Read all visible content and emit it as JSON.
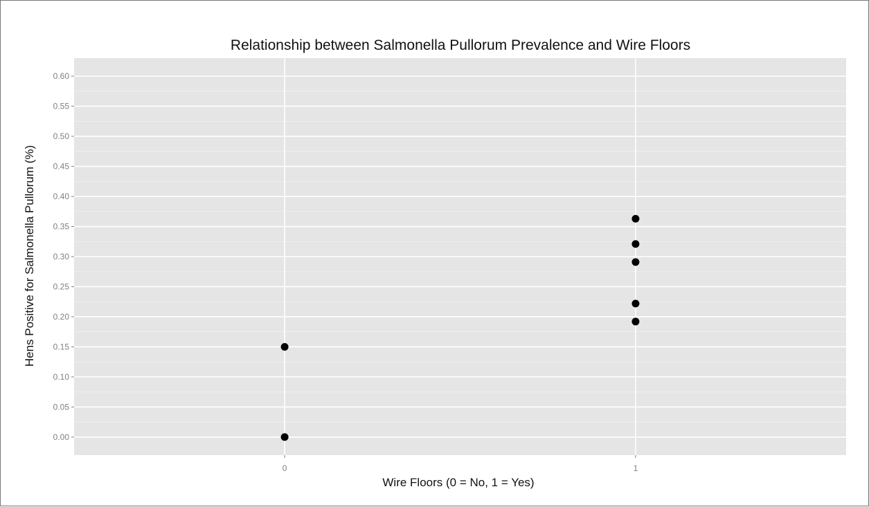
{
  "chart_data": {
    "type": "scatter",
    "title": "Relationship between Salmonella Pullorum Prevalence and Wire Floors",
    "xlabel": "Wire Floors (0 = No, 1 = Yes)",
    "ylabel": "Hens Positive for Salmonella Pullorum (%)",
    "x_ticks": [
      "0",
      "1"
    ],
    "y_ticks": [
      "0.00",
      "0.05",
      "0.10",
      "0.15",
      "0.20",
      "0.25",
      "0.30",
      "0.35",
      "0.40",
      "0.45",
      "0.50",
      "0.55",
      "0.60"
    ],
    "xlim": [
      -0.6,
      1.6
    ],
    "ylim": [
      -0.03,
      0.63
    ],
    "grid": true,
    "background": "#e5e5e5",
    "gridline_color": "#ffffff",
    "point_color": "#000000",
    "points": [
      {
        "x": 0,
        "y": 0.15
      },
      {
        "x": 0,
        "y": 0.0
      },
      {
        "x": 1,
        "y": 0.363
      },
      {
        "x": 1,
        "y": 0.321
      },
      {
        "x": 1,
        "y": 0.291
      },
      {
        "x": 1,
        "y": 0.222
      },
      {
        "x": 1,
        "y": 0.192
      }
    ]
  }
}
